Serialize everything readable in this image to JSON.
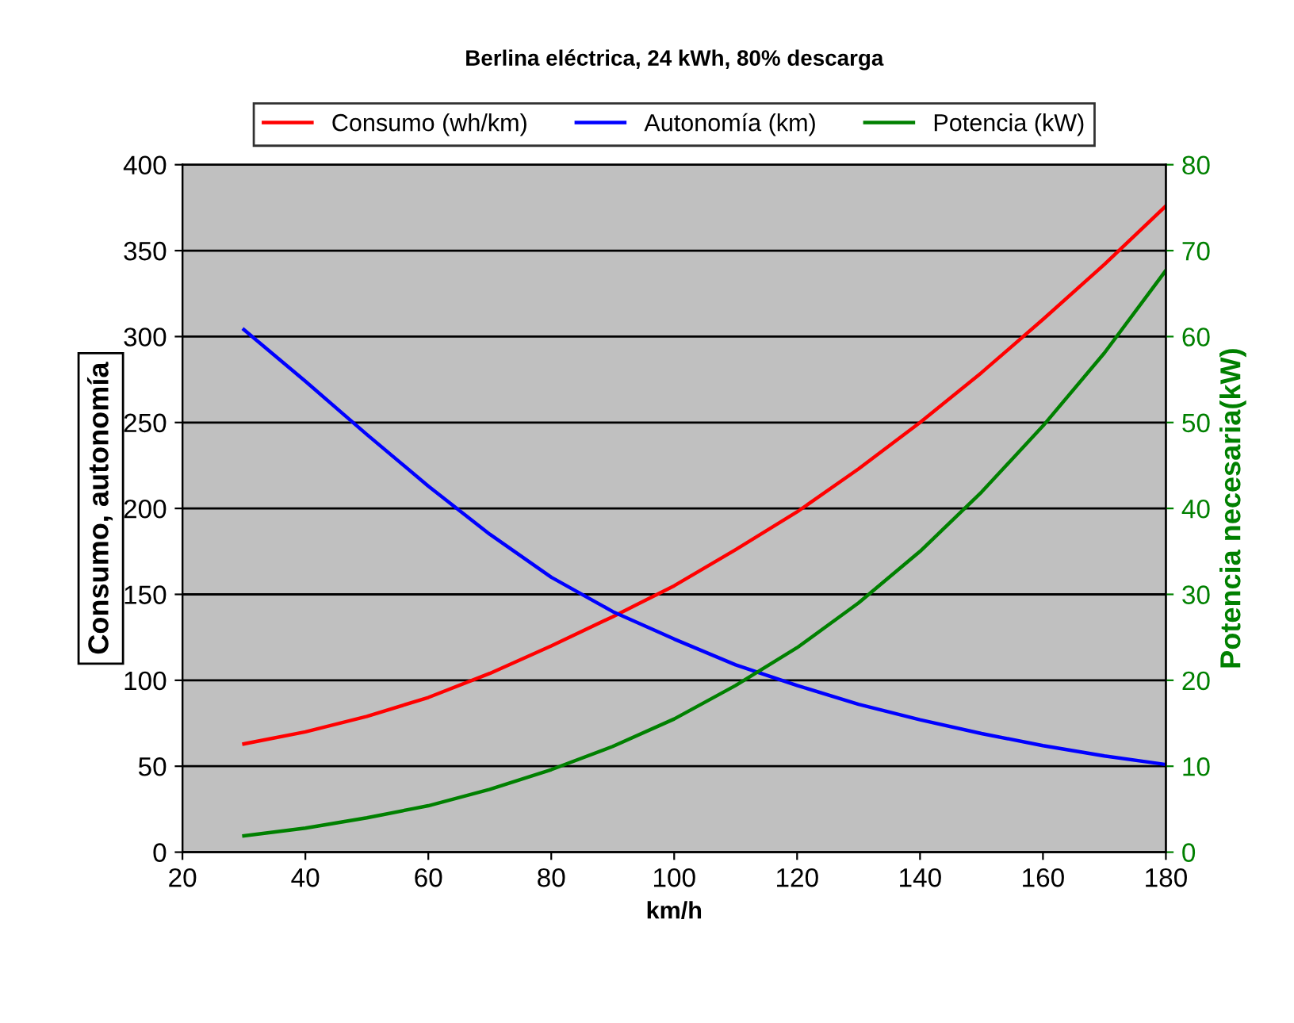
{
  "chart_data": {
    "type": "line",
    "title": "Berlina eléctrica, 24 kWh, 80% descarga",
    "xlabel": "km/h",
    "ylabel": "Consumo, autonomía",
    "y2label": "Potencia necesaria(kW)",
    "x": [
      30,
      40,
      50,
      60,
      70,
      80,
      90,
      100,
      110,
      120,
      130,
      140,
      150,
      160,
      170,
      180
    ],
    "series": [
      {
        "name": "Consumo (wh/km)",
        "color": "#ff0000",
        "values": [
          63,
          70,
          79,
          90,
          104,
          120,
          137,
          155,
          176,
          198,
          223,
          250,
          279,
          310,
          342,
          376
        ]
      },
      {
        "name": "Autonomía (km)",
        "color": "#0000ff",
        "values": [
          304,
          274,
          243,
          213,
          185,
          160,
          140,
          124,
          109,
          97,
          86,
          77,
          69,
          62,
          56,
          51
        ]
      },
      {
        "name": "Potencia (kW)",
        "color": "#008000",
        "axis": "y2",
        "values": [
          1.9,
          2.8,
          4.0,
          5.4,
          7.3,
          9.6,
          12.3,
          15.5,
          19.4,
          23.8,
          29.0,
          35.0,
          41.9,
          49.6,
          58.1,
          67.7
        ]
      }
    ],
    "xlim": [
      20,
      180
    ],
    "xticks": [
      20,
      40,
      60,
      80,
      100,
      120,
      140,
      160,
      180
    ],
    "ylim": [
      0,
      400
    ],
    "yticks": [
      0,
      50,
      100,
      150,
      200,
      250,
      300,
      350,
      400
    ],
    "y2lim": [
      0,
      80
    ],
    "y2ticks": [
      0,
      10,
      20,
      30,
      40,
      50,
      60,
      70,
      80
    ],
    "grid": "y",
    "legend": "top",
    "marker": "none",
    "line_style": "solid"
  }
}
